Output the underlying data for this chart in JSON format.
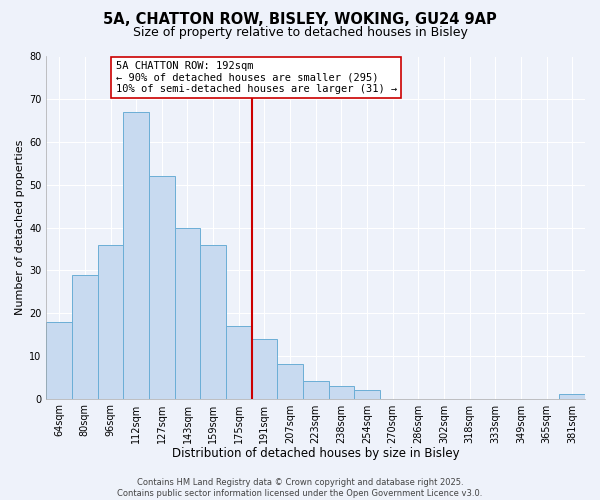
{
  "title": "5A, CHATTON ROW, BISLEY, WOKING, GU24 9AP",
  "subtitle": "Size of property relative to detached houses in Bisley",
  "xlabel": "Distribution of detached houses by size in Bisley",
  "ylabel": "Number of detached properties",
  "bin_labels": [
    "64sqm",
    "80sqm",
    "96sqm",
    "112sqm",
    "127sqm",
    "143sqm",
    "159sqm",
    "175sqm",
    "191sqm",
    "207sqm",
    "223sqm",
    "238sqm",
    "254sqm",
    "270sqm",
    "286sqm",
    "302sqm",
    "318sqm",
    "333sqm",
    "349sqm",
    "365sqm",
    "381sqm"
  ],
  "bar_values": [
    18,
    29,
    36,
    67,
    52,
    40,
    36,
    17,
    14,
    8,
    4,
    3,
    2,
    0,
    0,
    0,
    0,
    0,
    0,
    0,
    1
  ],
  "bar_color": "#c8daf0",
  "bar_edge_color": "#6baed6",
  "vline_color": "#cc0000",
  "annotation_line1": "5A CHATTON ROW: 192sqm",
  "annotation_line2": "← 90% of detached houses are smaller (295)",
  "annotation_line3": "10% of semi-detached houses are larger (31) →",
  "ylim": [
    0,
    80
  ],
  "yticks": [
    0,
    10,
    20,
    30,
    40,
    50,
    60,
    70,
    80
  ],
  "background_color": "#eef2fa",
  "grid_color": "#ffffff",
  "title_fontsize": 10.5,
  "subtitle_fontsize": 9,
  "xlabel_fontsize": 8.5,
  "ylabel_fontsize": 8,
  "tick_fontsize": 7,
  "annotation_fontsize": 7.5,
  "footer_fontsize": 6,
  "footer_text": "Contains HM Land Registry data © Crown copyright and database right 2025.\nContains public sector information licensed under the Open Government Licence v3.0."
}
